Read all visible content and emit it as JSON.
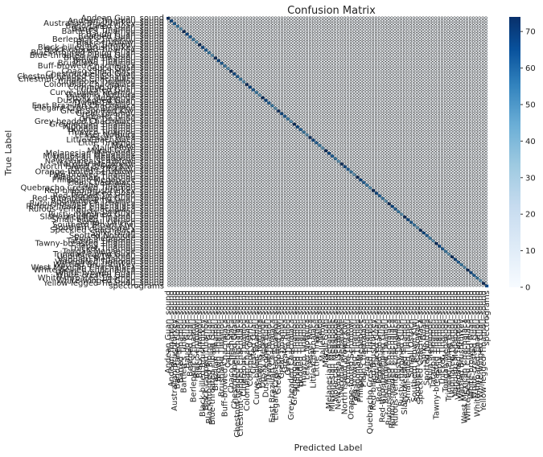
{
  "chart_data": {
    "type": "heatmap",
    "title": "Confusion Matrix",
    "xlabel": "Predicted Label",
    "ylabel": "True Label",
    "labels": [
      "Andean Guan_sound",
      "Andean Tinamou_sound",
      "Australian Brushturkey_sound",
      "Band-tailed Guan_sound",
      "Barred Tinamou_sound",
      "Bartlett's Tinamou_sound",
      "Baudo Guan_sound",
      "Bearded Guan_sound",
      "Berlepsch's Tinamou_sound",
      "Biak Scrubfowl_sound",
      "Black Tinamou_sound",
      "Black-billed Brushturkey_sound",
      "Black-capped Tinamou_sound",
      "Black-fronted Piping Guan_sound",
      "Blue-throated Piping Guan_sound",
      "Brazilian Tinamou_sound",
      "Brown Tinamou_sound",
      "Brushland Tinamou_sound",
      "Buff-browed Chachalaca_sound",
      "Cauca Guan_sound",
      "Chaco Chachalaca_sound",
      "Chestnut-bellied Guan_sound",
      "Chestnut-headed Chachalaca_sound",
      "Chestnut-winged Chachalaca_sound",
      "Cinereous Tinamou_sound",
      "Colombian Chachalaca_sound",
      "Common Ostrich_sound",
      "Crested Guan_sound",
      "Curve-billed Tinamou_sound",
      "Darwin's Nothura_sound",
      "Dusky Megapode_sound",
      "Dusky-legged Guan_sound",
      "Dwarf Tinamou_sound",
      "East Brazilian Chachalaca_sound",
      "Elegant Crested Tinamou_sound",
      "Great Spotted Kiwi_sound",
      "Great Tinamou_sound",
      "Greater Rhea_sound",
      "Grey Tinamou_sound",
      "Grey-headed Chachalaca_sound",
      "Grey-legged Tinamou_sound",
      "Highland Tinamou_sound",
      "Hooded Tinamou_sound",
      "Huayco Tinamou_sound",
      "Lesser Nothura_sound",
      "Lesser Rhea_sound",
      "Little Chachalaca_sound",
      "Little Tinamou_sound",
      "Maleo_sound",
      "Malleefowl_sound",
      "Marail Guan_sound",
      "Melanesian Megapode_sound",
      "Micronesian Megapode_sound",
      "Moluccan Megapode_sound",
      "New Guinea Scrubfowl_sound",
      "Nicobar Megapode_sound",
      "North Island Brown Kiwi_sound",
      "Ornate Tinamou_sound",
      "Orange-footed Scrubfowl_sound",
      "Pale-browed Tinamou_sound",
      "Patagonian Tinamou_sound",
      "Philippine Megapode_sound",
      "Plain Chachalaca_sound",
      "Puna Tinamou_sound",
      "Quebracho Crested Tinamou_sound",
      "Red-billed Brushturkey_sound",
      "Red-faced Guan_sound",
      "Red-legged Tinamou_sound",
      "Red-throated Piping Guan_sound",
      "Red-winged Tinamou_sound",
      "Rufous-bellied Chachalaca_sound",
      "Rufous-headed Chachalaca_sound",
      "Rufous-vented Chachalaca_sound",
      "Rusty Tinamou_sound",
      "Rusty-margined Guan_sound",
      "Slaty-breasted Tinamou_sound",
      "Small-billed Tinamou_sound",
      "Somali Ostrich_sound",
      "Southern Brown Kiwi_sound",
      "Southern Cassowary_sound",
      "Speckled Chachalaca_sound",
      "Spixs Guan_sound",
      "Spotted Nothura_sound",
      "Sula Megapode_sound",
      "Tataupa Tinamou_sound",
      "Tawny-breasted Tinamou_sound",
      "Tepui Tinamou_sound",
      "Thicket Tinamou_sound",
      "Tongan Megapode_sound",
      "Trinidad Piping Guan_sound",
      "Undulated Tinamou_sound",
      "Vanuatu Megapode_sound",
      "Variegated Tinamou_sound",
      "Wattled Brushturkey_sound",
      "West Mexican Chachalaca_sound",
      "White-bellied Chachalaca_sound",
      "White-browed Guan_sound",
      "White-crested Guan_sound",
      "White-throated Tinamou_sound",
      "White-winged Guan_sound",
      "Yellow-legged Tinamou_sound",
      "spectrograms"
    ],
    "matrix_note": "diagonal-dominant; most cells 0",
    "colorbar": {
      "min": 0,
      "max": 74,
      "ticks": [
        0,
        10,
        20,
        30,
        40,
        50,
        60,
        70
      ],
      "colormap": "Blues"
    },
    "grid": false,
    "legend": "colorbar-right"
  },
  "colors": {
    "low": "#f7fbff",
    "high": "#08306b",
    "annotation": "#222222"
  }
}
